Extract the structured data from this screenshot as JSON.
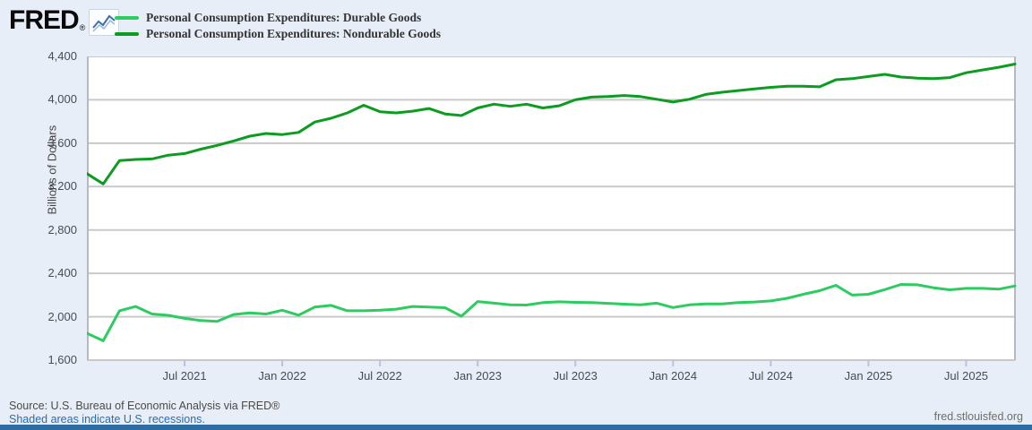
{
  "header": {
    "logo_text": "FRED",
    "registered_mark": "®",
    "logo_icon": "sparkline-chart-icon",
    "legend": [
      {
        "label": "Personal Consumption Expenditures: Durable Goods",
        "color": "#2ccc61"
      },
      {
        "label": "Personal Consumption Expenditures: Nondurable Goods",
        "color": "#0b9c20"
      }
    ]
  },
  "chart_data": {
    "type": "line",
    "title": "",
    "ylabel": "Billions of Dollars",
    "xlabel": "",
    "ylim": [
      1600,
      4400
    ],
    "ytick_step": 400,
    "ytick_labels_top_to_bottom": [
      "4,400",
      "4,000",
      "3,600",
      "3,200",
      "2,800",
      "2,400",
      "2,000",
      "1,600"
    ],
    "xtick_labels": [
      "Jul 2021",
      "Jan 2022",
      "Jul 2022",
      "Jan 2023",
      "Jul 2023",
      "Jan 2024",
      "Jul 2024",
      "Jan 2025",
      "Jul 2025"
    ],
    "xtick_month_indices": [
      6,
      12,
      18,
      24,
      30,
      36,
      42,
      48,
      54
    ],
    "x_start": "2021-01",
    "x_end": "2025-10",
    "frequency": "monthly",
    "grid": true,
    "legend_position": "top-left",
    "plot_bg": "#ffffff",
    "grid_color": "#c9c9c9",
    "tick_color": "#b6c4de",
    "series": [
      {
        "name": "Personal Consumption Expenditures: Durable Goods",
        "color": "#2ccc61",
        "values": [
          1848,
          1778,
          2055,
          2095,
          2025,
          2013,
          1985,
          1965,
          1958,
          2020,
          2035,
          2025,
          2060,
          2015,
          2090,
          2105,
          2055,
          2055,
          2060,
          2070,
          2095,
          2090,
          2083,
          2005,
          2140,
          2125,
          2110,
          2108,
          2130,
          2138,
          2133,
          2130,
          2124,
          2116,
          2110,
          2125,
          2085,
          2110,
          2118,
          2118,
          2130,
          2136,
          2146,
          2170,
          2207,
          2240,
          2290,
          2200,
          2207,
          2250,
          2298,
          2295,
          2267,
          2248,
          2262,
          2262,
          2254,
          2284
        ]
      },
      {
        "name": "Personal Consumption Expenditures: Nondurable Goods",
        "color": "#0b9c20",
        "values": [
          3320,
          3225,
          3440,
          3450,
          3455,
          3490,
          3505,
          3545,
          3580,
          3620,
          3665,
          3690,
          3680,
          3700,
          3795,
          3830,
          3880,
          3950,
          3890,
          3880,
          3895,
          3920,
          3870,
          3855,
          3925,
          3960,
          3940,
          3960,
          3925,
          3945,
          4000,
          4025,
          4030,
          4040,
          4030,
          4005,
          3980,
          4005,
          4050,
          4070,
          4085,
          4100,
          4115,
          4125,
          4125,
          4120,
          4185,
          4195,
          4215,
          4235,
          4210,
          4200,
          4195,
          4205,
          4250,
          4275,
          4300,
          4330
        ]
      }
    ]
  },
  "footer": {
    "source": "Source: U.S. Bureau of Economic Analysis via FRED®",
    "recession_note": "Shaded areas indicate U.S. recessions.",
    "site": "fred.stlouisfed.org"
  }
}
